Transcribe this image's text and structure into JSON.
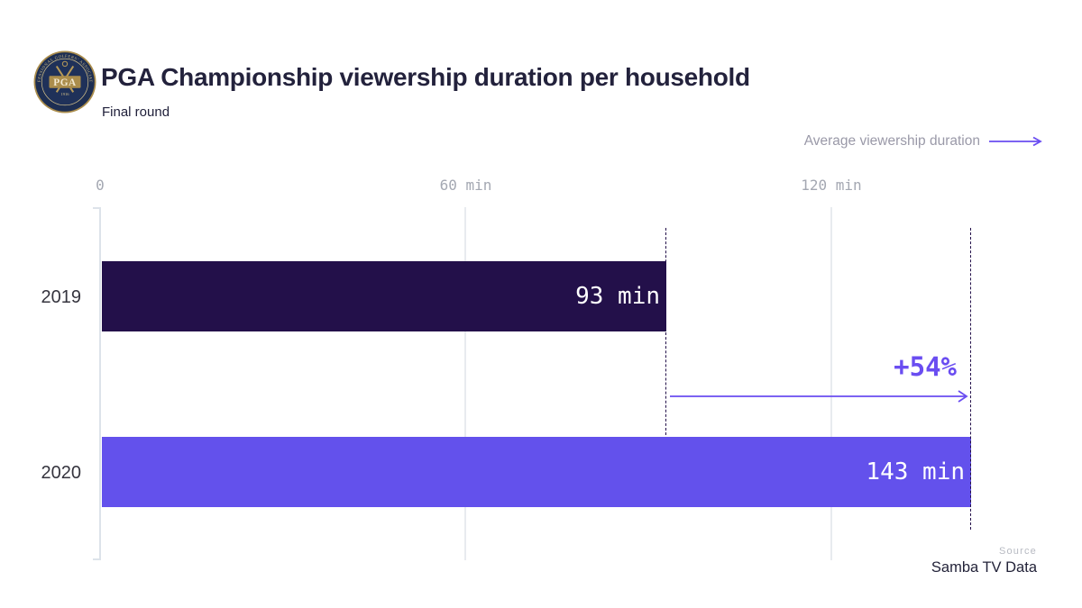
{
  "header": {
    "title": "PGA Championship viewership duration per household",
    "subtitle": "Final round",
    "logo": {
      "ring_top": "PROFESSIONAL GOLFERS' ASSOCIATION",
      "ring_bottom": "OF AMERICA",
      "monogram": "PGA",
      "year": "1916"
    }
  },
  "legend": {
    "label": "Average viewership duration"
  },
  "chart_data": {
    "type": "bar",
    "orientation": "horizontal",
    "title": "PGA Championship viewership duration per household",
    "subtitle": "Final round",
    "categories": [
      "2019",
      "2020"
    ],
    "values": [
      93,
      143
    ],
    "value_labels": [
      "93 min",
      "143 min"
    ],
    "unit": "min",
    "x_ticks": [
      0,
      60,
      120
    ],
    "x_tick_labels": [
      "0",
      "60 min",
      "120 min"
    ],
    "xlim": [
      0,
      155
    ],
    "grid": true,
    "legend_label": "Average viewership duration",
    "annotation": {
      "label": "+54%",
      "from_value": 93,
      "to_value": 143
    },
    "bar_colors": [
      "#23104a",
      "#6351ec"
    ],
    "accent_color": "#6a4df1",
    "source": "Samba TV Data"
  },
  "footer": {
    "source_label": "Source",
    "source_value": "Samba TV Data"
  }
}
